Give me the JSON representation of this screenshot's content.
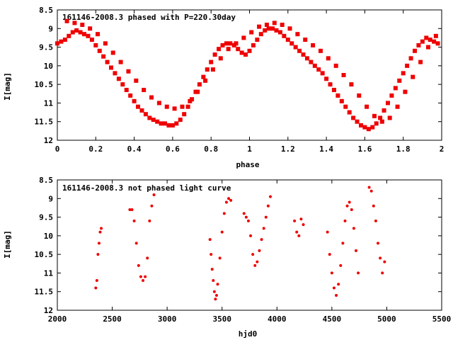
{
  "chart_data": [
    {
      "type": "scatter",
      "title": "161146-2008.3 phased with P=220.30day",
      "xlabel": "phase",
      "ylabel": "I[mag]",
      "xlim": [
        0,
        2
      ],
      "ylim": [
        12,
        8.5
      ],
      "y_inverted": true,
      "xticks": [
        "0",
        "0.2",
        "0.4",
        "0.6",
        "0.8",
        "1",
        "1.2",
        "1.4",
        "1.6",
        "1.8",
        "2"
      ],
      "yticks": [
        "8.5",
        "9",
        "9.5",
        "10",
        "10.5",
        "11",
        "11.5",
        "12"
      ],
      "grid": false,
      "marker": "plus",
      "color": "#ee0000",
      "series": [
        {
          "x": [
            0.0,
            0.02,
            0.04,
            0.06,
            0.08,
            0.1,
            0.12,
            0.14,
            0.16,
            0.18,
            0.2,
            0.22,
            0.24,
            0.26,
            0.28,
            0.3,
            0.32,
            0.34,
            0.36,
            0.38,
            0.4,
            0.42,
            0.44,
            0.46,
            0.48,
            0.5,
            0.52,
            0.54,
            0.56,
            0.58,
            0.6,
            0.62,
            0.64,
            0.66,
            0.68,
            0.7,
            0.72,
            0.74,
            0.76,
            0.78,
            0.8,
            0.82,
            0.84,
            0.86,
            0.88,
            0.9,
            0.92,
            0.94,
            0.96,
            0.98,
            1.0,
            1.02,
            1.04,
            1.06,
            1.08,
            1.1,
            1.12,
            1.14,
            1.16,
            1.18,
            1.2,
            1.22,
            1.24,
            1.26,
            1.28,
            1.3,
            1.32,
            1.34,
            1.36,
            1.38,
            1.4,
            1.42,
            1.44,
            1.46,
            1.48,
            1.5,
            1.52,
            1.54,
            1.56,
            1.58,
            1.6,
            1.62,
            1.64,
            1.66,
            1.68,
            1.7,
            1.72,
            1.74,
            1.76,
            1.78,
            1.8,
            1.82,
            1.84,
            1.86,
            1.88,
            1.9,
            1.92,
            1.94,
            1.96,
            1.98
          ],
          "y": [
            9.4,
            9.35,
            9.3,
            9.2,
            9.1,
            9.05,
            9.1,
            9.15,
            9.2,
            9.3,
            9.45,
            9.6,
            9.75,
            9.9,
            10.05,
            10.2,
            10.35,
            10.5,
            10.65,
            10.8,
            10.95,
            11.1,
            11.2,
            11.3,
            11.4,
            11.45,
            11.5,
            11.55,
            11.55,
            11.6,
            11.6,
            11.55,
            11.45,
            11.3,
            11.1,
            10.9,
            10.7,
            10.5,
            10.3,
            10.1,
            9.9,
            9.7,
            9.55,
            9.45,
            9.4,
            9.4,
            9.45,
            9.55,
            9.65,
            9.7,
            9.6,
            9.45,
            9.3,
            9.15,
            9.05,
            9.0,
            9.0,
            9.05,
            9.1,
            9.2,
            9.3,
            9.4,
            9.5,
            9.6,
            9.7,
            9.8,
            9.9,
            10.0,
            10.1,
            10.2,
            10.35,
            10.5,
            10.65,
            10.8,
            10.95,
            11.1,
            11.25,
            11.4,
            11.5,
            11.6,
            11.65,
            11.7,
            11.65,
            11.55,
            11.4,
            11.2,
            11.0,
            10.8,
            10.6,
            10.4,
            10.2,
            10.0,
            9.8,
            9.6,
            9.45,
            9.35,
            9.25,
            9.3,
            9.35,
            9.4
          ]
        },
        {
          "x": [
            0.05,
            0.09,
            0.13,
            0.17,
            0.21,
            0.25,
            0.29,
            0.33,
            0.37,
            0.41,
            0.45,
            0.49,
            0.53,
            0.57,
            0.61,
            0.65,
            0.69,
            0.73,
            0.77,
            0.81,
            0.85,
            0.89,
            0.93,
            0.97,
            1.01,
            1.05,
            1.09,
            1.13,
            1.17,
            1.21,
            1.25,
            1.29,
            1.33,
            1.37,
            1.41,
            1.45,
            1.49,
            1.53,
            1.57,
            1.61,
            1.65,
            1.69,
            1.73,
            1.77,
            1.81,
            1.85,
            1.89,
            1.93,
            1.97
          ],
          "y": [
            8.8,
            8.85,
            8.9,
            9.0,
            9.15,
            9.4,
            9.65,
            9.9,
            10.15,
            10.4,
            10.65,
            10.85,
            11.0,
            11.1,
            11.15,
            11.1,
            10.95,
            10.7,
            10.4,
            10.1,
            9.8,
            9.55,
            9.4,
            9.25,
            9.1,
            8.95,
            8.9,
            8.85,
            8.9,
            9.0,
            9.15,
            9.3,
            9.45,
            9.6,
            9.8,
            10.0,
            10.25,
            10.5,
            10.8,
            11.1,
            11.35,
            11.5,
            11.4,
            11.1,
            10.7,
            10.3,
            9.9,
            9.5,
            9.2
          ]
        }
      ]
    },
    {
      "type": "scatter",
      "title": "161146-2008.3 not phased light curve",
      "xlabel": "hjd0",
      "ylabel": "I[mag]",
      "xlim": [
        2000,
        5500
      ],
      "ylim": [
        12,
        8.5
      ],
      "y_inverted": true,
      "xticks": [
        "2000",
        "2500",
        "3000",
        "3500",
        "4000",
        "4500",
        "5000",
        "5500"
      ],
      "yticks": [
        "8.5",
        "9",
        "9.5",
        "10",
        "10.5",
        "11",
        "11.5",
        "12"
      ],
      "grid": false,
      "marker": "dot",
      "color": "#ee0000",
      "series": [
        {
          "x": [
            2350,
            2360,
            2370,
            2380,
            2390,
            2400,
            2660,
            2680,
            2700,
            2720,
            2740,
            2760,
            2780,
            2800,
            2820,
            2840,
            2860,
            2880,
            3390,
            3400,
            3410,
            3420,
            3430,
            3440,
            3450,
            3460,
            3480,
            3500,
            3520,
            3540,
            3560,
            3580,
            3700,
            3720,
            3740,
            3760,
            3780,
            3800,
            3820,
            3840,
            3860,
            3880,
            3900,
            3920,
            3940,
            4160,
            4180,
            4200,
            4220,
            4240,
            4460,
            4480,
            4500,
            4520,
            4540,
            4560,
            4580,
            4600,
            4620,
            4640,
            4660,
            4680,
            4700,
            4720,
            4740,
            4840,
            4860,
            4880,
            4900,
            4920,
            4940,
            4960,
            4980
          ],
          "y": [
            11.4,
            11.2,
            10.5,
            10.2,
            9.9,
            9.8,
            9.3,
            9.3,
            9.6,
            10.2,
            10.8,
            11.1,
            11.2,
            11.1,
            10.6,
            9.6,
            9.2,
            8.9,
            10.1,
            10.5,
            10.9,
            11.2,
            11.5,
            11.7,
            11.6,
            11.3,
            10.6,
            9.9,
            9.4,
            9.1,
            9.0,
            9.05,
            9.4,
            9.5,
            9.6,
            10.0,
            10.5,
            10.8,
            10.7,
            10.4,
            10.1,
            9.8,
            9.5,
            9.2,
            8.95,
            9.6,
            9.9,
            10.0,
            9.55,
            9.7,
            9.9,
            10.5,
            11.0,
            11.4,
            11.6,
            11.3,
            10.8,
            10.2,
            9.6,
            9.2,
            9.1,
            9.3,
            9.8,
            10.4,
            11.0,
            8.7,
            8.8,
            9.2,
            9.6,
            10.2,
            10.6,
            11.0,
            10.7
          ]
        }
      ]
    }
  ]
}
